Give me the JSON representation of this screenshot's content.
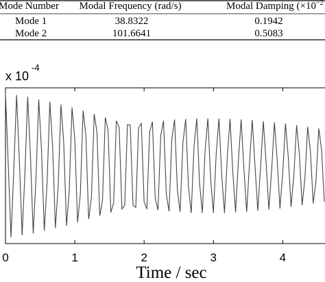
{
  "table": {
    "header": [
      "Mode Number",
      "Modal Frequency (rad/s)",
      "Modal Damping (×10",
      "−2"
    ],
    "rows": [
      [
        "Mode 1",
        "38.8322",
        "0.1942"
      ],
      [
        "Mode 2",
        "101.6641",
        "0.5083"
      ]
    ]
  },
  "chart_data": {
    "type": "line",
    "multiplier": "x 10",
    "multiplier_exponent": "-4",
    "xlabel": "Time / sec",
    "xlim": [
      0,
      4.6
    ],
    "ylim": [
      -1.4,
      1.4
    ],
    "xticks": [
      0,
      1,
      2,
      3,
      4
    ],
    "x": [
      0,
      0.04,
      0.08,
      0.12,
      0.16,
      0.2,
      0.24,
      0.28,
      0.32,
      0.36,
      0.4,
      0.44,
      0.48,
      0.52,
      0.56,
      0.6,
      0.64,
      0.68,
      0.72,
      0.76,
      0.8,
      0.84,
      0.88,
      0.92,
      0.96,
      1,
      1.04,
      1.08,
      1.12,
      1.16,
      1.2,
      1.24,
      1.28,
      1.32,
      1.36,
      1.4,
      1.44,
      1.48,
      1.52,
      1.56,
      1.6,
      1.64,
      1.68,
      1.72,
      1.76,
      1.8,
      1.84,
      1.88,
      1.92,
      1.96,
      2,
      2.04,
      2.08,
      2.12,
      2.16,
      2.2,
      2.24,
      2.28,
      2.32,
      2.36,
      2.4,
      2.44,
      2.48,
      2.52,
      2.56,
      2.6,
      2.64,
      2.68,
      2.72,
      2.76,
      2.8,
      2.84,
      2.88,
      2.92,
      2.96,
      3,
      3.04,
      3.08,
      3.12,
      3.16,
      3.2,
      3.24,
      3.28,
      3.32,
      3.36,
      3.4,
      3.44,
      3.48,
      3.52,
      3.56,
      3.6,
      3.64,
      3.68,
      3.72,
      3.76,
      3.8,
      3.84,
      3.88,
      3.92,
      3.96,
      4,
      4.04,
      4.08,
      4.12,
      4.16,
      4.2,
      4.24,
      4.28,
      4.32,
      4.36,
      4.4,
      4.44,
      4.48,
      4.52,
      4.56,
      4.6
    ],
    "series": [
      {
        "color": "#444444",
        "values": [
          1.3,
          0.02,
          -1.29,
          -0.07,
          1.27,
          0.11,
          -1.25,
          -0.15,
          1.24,
          0.19,
          -1.22,
          -0.23,
          1.19,
          0.27,
          -1.17,
          -0.31,
          1.15,
          0.35,
          -1.12,
          -0.38,
          1.1,
          0.42,
          -1.08,
          -0.45,
          1.05,
          0.48,
          -1.02,
          -0.51,
          0.99,
          0.54,
          -0.96,
          -0.57,
          0.93,
          0.6,
          -0.9,
          -0.62,
          0.87,
          0.64,
          -0.84,
          -0.67,
          0.81,
          0.69,
          -0.78,
          -0.71,
          0.74,
          0.73,
          -0.71,
          -0.75,
          0.68,
          0.76,
          -0.65,
          -0.78,
          0.61,
          0.79,
          -0.58,
          -0.8,
          0.54,
          0.81,
          -0.51,
          -0.82,
          0.48,
          0.83,
          -0.44,
          -0.83,
          0.41,
          0.84,
          -0.38,
          -0.85,
          0.34,
          0.85,
          -0.31,
          -0.85,
          0.28,
          0.85,
          -0.24,
          -0.85,
          0.21,
          0.85,
          -0.18,
          -0.85,
          0.15,
          0.84,
          -0.12,
          -0.84,
          0.09,
          0.83,
          -0.06,
          -0.83,
          0.03,
          0.82,
          0.0,
          -0.81,
          -0.03,
          0.8,
          0.06,
          -0.79,
          -0.08,
          0.78,
          0.11,
          -0.77,
          -0.13,
          0.76,
          0.16,
          -0.74,
          -0.18,
          0.73,
          0.21,
          -0.71,
          -0.23,
          0.7,
          0.25,
          -0.68,
          -0.27,
          0.67,
          0.29,
          -0.65
        ]
      }
    ]
  }
}
